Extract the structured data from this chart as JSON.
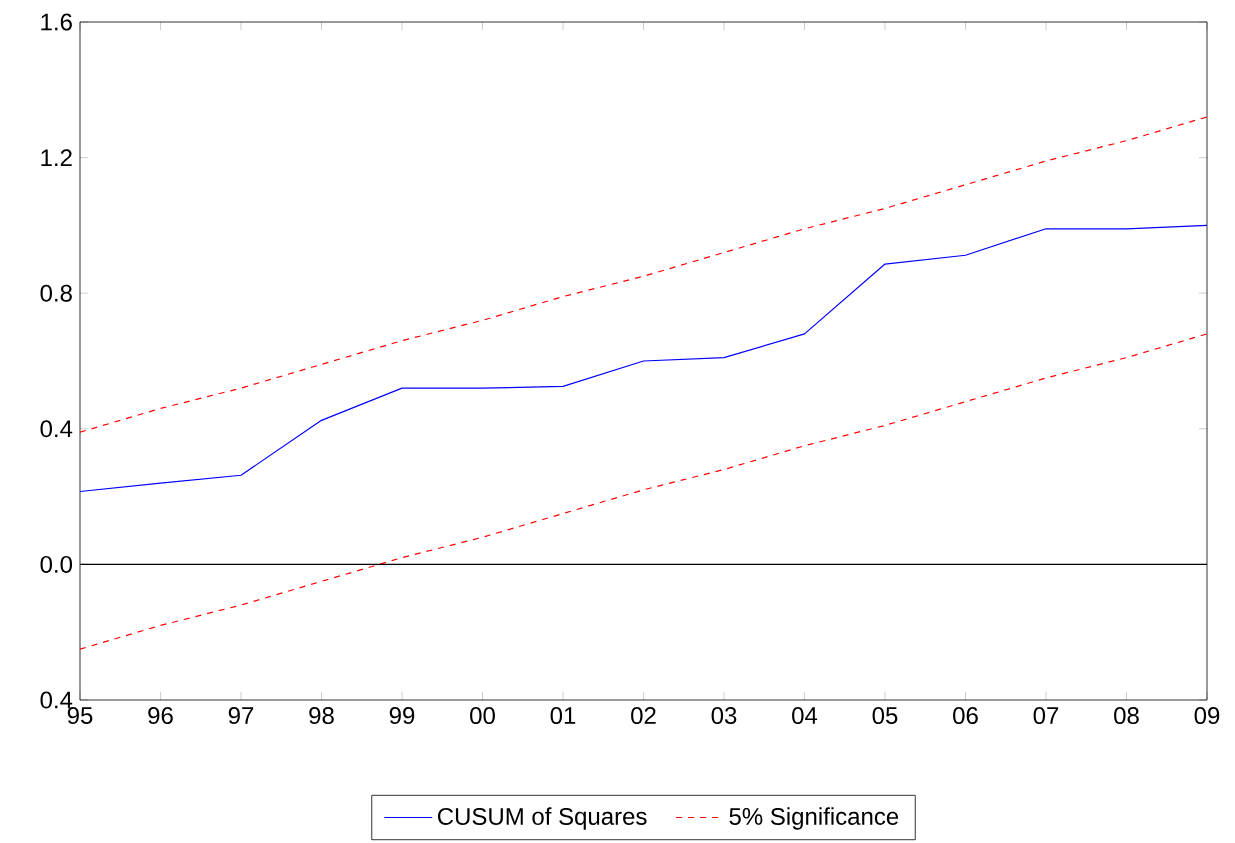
{
  "chart_data": {
    "type": "line",
    "categories": [
      "95",
      "96",
      "97",
      "98",
      "99",
      "00",
      "01",
      "02",
      "03",
      "04",
      "05",
      "06",
      "07",
      "08",
      "09"
    ],
    "series": [
      {
        "name": "CUSUM of Squares",
        "color": "#0000ff",
        "line_style": "solid",
        "values": [
          0.215,
          0.24,
          0.263,
          0.425,
          0.52,
          0.52,
          0.525,
          0.6,
          0.61,
          0.68,
          0.886,
          0.912,
          0.99,
          0.99,
          1.0
        ]
      },
      {
        "name": "5% Significance",
        "color": "#ff0000",
        "line_style": "dashed",
        "values": [
          0.39,
          0.46,
          0.52,
          0.59,
          0.66,
          0.72,
          0.79,
          0.85,
          0.92,
          0.99,
          1.05,
          1.12,
          1.19,
          1.25,
          1.32
        ]
      },
      {
        "color": "#ff0000",
        "line_style": "dashed",
        "values": [
          -0.25,
          -0.18,
          -0.12,
          -0.05,
          0.02,
          0.08,
          0.15,
          0.22,
          0.28,
          0.35,
          0.41,
          0.48,
          0.55,
          0.61,
          0.68
        ]
      }
    ],
    "ylim": [
      -0.4,
      1.6
    ],
    "yticks": [
      {
        "value": -0.4,
        "label": "0.4"
      },
      {
        "value": 0.0,
        "label": "0.0"
      },
      {
        "value": 0.4,
        "label": "0.4"
      },
      {
        "value": 0.8,
        "label": "0.8"
      },
      {
        "value": 1.2,
        "label": "1.2"
      },
      {
        "value": 1.6,
        "label": "1.6"
      }
    ],
    "ref_lines": [
      {
        "axis": "y",
        "value": 0,
        "color": "#000000",
        "line_style": "solid"
      }
    ],
    "legend": "bottom"
  }
}
